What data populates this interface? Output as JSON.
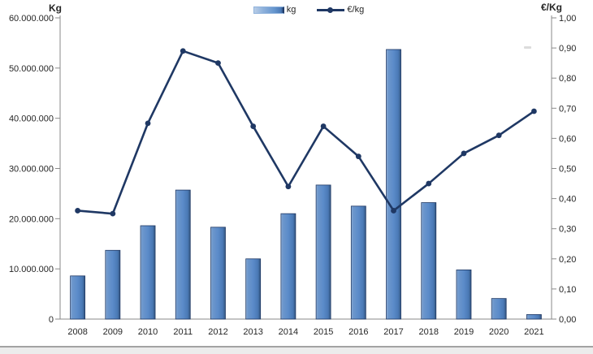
{
  "chart_data": {
    "type": "bar",
    "subtype": "combo-bar-line-dual-axis",
    "title": "",
    "categories": [
      "2008",
      "2009",
      "2010",
      "2011",
      "2012",
      "2013",
      "2014",
      "2015",
      "2016",
      "2017",
      "2018",
      "2019",
      "2020",
      "2021"
    ],
    "series": [
      {
        "name": "kg",
        "type": "bar",
        "axis": "left",
        "values": [
          8600000,
          13700000,
          18600000,
          25700000,
          18300000,
          12000000,
          21000000,
          26700000,
          22500000,
          53700000,
          23200000,
          9800000,
          4100000,
          900000
        ]
      },
      {
        "name": "€/kg",
        "type": "line",
        "axis": "right",
        "values": [
          0.36,
          0.35,
          0.65,
          0.89,
          0.85,
          0.64,
          0.44,
          0.64,
          0.54,
          0.36,
          0.45,
          0.55,
          0.61,
          0.69
        ]
      }
    ],
    "left_axis": {
      "title": "Kg",
      "min": 0,
      "max": 60000000,
      "tick_values": [
        60000000,
        50000000,
        40000000,
        30000000,
        20000000,
        10000000,
        0
      ],
      "tick_labels": [
        "60.000.000",
        "50.000.000",
        "40.000.000",
        "30.000.000",
        "20.000.000",
        "10.000.000",
        "0"
      ]
    },
    "right_axis": {
      "title": "€/Kg",
      "min": 0,
      "max": 1.0,
      "tick_values": [
        1.0,
        0.9,
        0.8,
        0.7,
        0.6,
        0.5,
        0.4,
        0.3,
        0.2,
        0.1,
        0.0
      ],
      "tick_labels": [
        "1,00",
        "0,90",
        "0,80",
        "0,70",
        "0,60",
        "0,50",
        "0,40",
        "0,30",
        "0,20",
        "0,10",
        "0,00"
      ]
    },
    "legend": {
      "position": "top-center",
      "items": [
        {
          "label": "kg",
          "swatch": "bar"
        },
        {
          "label": "€/kg",
          "swatch": "line-marker"
        }
      ]
    },
    "grid": "off",
    "colors": {
      "bar_fill": "#5b8bc9",
      "bar_fill_light": "#95b3d7",
      "bar_fill_dark": "#4475ad",
      "bar_border": "#1f3864",
      "line": "#1f3864",
      "axis": "#8a8a8a",
      "text": "#262626"
    }
  }
}
